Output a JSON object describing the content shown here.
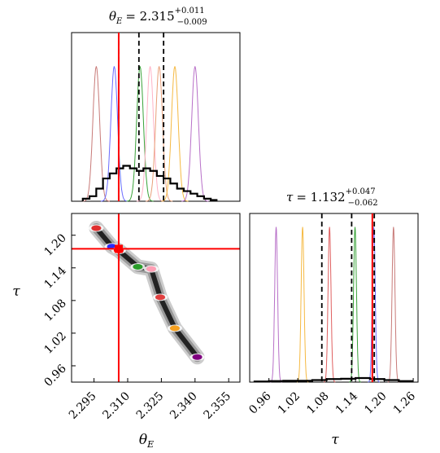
{
  "chart_data": [
    {
      "type": "histogram",
      "panel": "theta_E marginal",
      "title": {
        "param": "θ",
        "param_sub": "E",
        "value": "= 2.315",
        "err_plus": "+0.011",
        "err_minus": "−0.009"
      },
      "xlim": [
        2.285,
        2.36
      ],
      "true_value": 2.306,
      "quantiles": [
        2.306,
        2.315,
        2.326
      ],
      "combined_hist": {
        "color": "#000000",
        "bins": [
          2.29,
          2.293,
          2.296,
          2.299,
          2.302,
          2.305,
          2.308,
          2.311,
          2.314,
          2.317,
          2.32,
          2.323,
          2.326,
          2.329,
          2.332,
          2.335,
          2.338,
          2.341,
          2.344,
          2.347,
          2.35
        ],
        "values": [
          0.01,
          0.02,
          0.05,
          0.09,
          0.11,
          0.13,
          0.14,
          0.13,
          0.12,
          0.13,
          0.12,
          0.1,
          0.09,
          0.07,
          0.05,
          0.04,
          0.03,
          0.02,
          0.01,
          0.005
        ]
      },
      "component_hists": [
        {
          "color": "#c87a78",
          "center": 2.296,
          "width": 0.0015
        },
        {
          "color": "#6a6aff",
          "center": 2.304,
          "width": 0.0015
        },
        {
          "color": "#3aa33a",
          "center": 2.3155,
          "width": 0.0015
        },
        {
          "color": "#ffb3c6",
          "center": 2.32,
          "width": 0.0015
        },
        {
          "color": "#e8a07a",
          "center": 2.324,
          "width": 0.0015
        },
        {
          "color": "#f5b942",
          "center": 2.331,
          "width": 0.0015
        },
        {
          "color": "#b870c8",
          "center": 2.34,
          "width": 0.0015
        }
      ]
    },
    {
      "type": "histogram",
      "panel": "tau marginal",
      "title": {
        "param": "τ",
        "param_sub": "",
        "value": "= 1.132",
        "err_plus": "+0.047",
        "err_minus": "−0.062"
      },
      "xlim": [
        0.92,
        1.27
      ],
      "xticks": [
        "0.96",
        "1.02",
        "1.08",
        "1.14",
        "1.20",
        "1.26"
      ],
      "xticks_values": [
        0.96,
        1.02,
        1.08,
        1.14,
        1.2,
        1.26
      ],
      "xlabel": "τ",
      "true_value": 1.175,
      "quantiles": [
        1.07,
        1.132,
        1.179
      ],
      "combined_hist": {
        "color": "#000000",
        "bins": [
          0.93,
          0.96,
          0.99,
          1.02,
          1.05,
          1.08,
          1.11,
          1.14,
          1.17,
          1.2,
          1.23,
          1.26
        ],
        "values": [
          0.01,
          0.015,
          0.02,
          0.02,
          0.03,
          0.045,
          0.05,
          0.06,
          0.045,
          0.03,
          0.015
        ]
      },
      "component_hists": [
        {
          "color": "#b870c8",
          "center": 0.975,
          "width": 0.003
        },
        {
          "color": "#f5b942",
          "center": 1.03,
          "width": 0.003
        },
        {
          "color": "#e06060",
          "center": 1.086,
          "width": 0.003
        },
        {
          "color": "#3aa33a",
          "center": 1.139,
          "width": 0.003
        },
        {
          "color": "#6a6aff",
          "center": 1.178,
          "width": 0.003
        },
        {
          "color": "#c87a78",
          "center": 1.219,
          "width": 0.003
        }
      ]
    },
    {
      "type": "scatter",
      "panel": "joint theta_E vs tau",
      "xlim": [
        2.285,
        2.36
      ],
      "ylim": [
        0.93,
        1.24
      ],
      "xticks": [
        "2.295",
        "2.310",
        "2.325",
        "2.340",
        "2.355"
      ],
      "xticks_values": [
        2.295,
        2.31,
        2.325,
        2.34,
        2.355
      ],
      "yticks": [
        "0.96",
        "1.02",
        "1.08",
        "1.14",
        "1.20"
      ],
      "yticks_values": [
        0.96,
        1.02,
        1.08,
        1.14,
        1.2
      ],
      "xlabel": "θ",
      "xlabel_sub": "E",
      "ylabel": "τ",
      "truth": {
        "x": 2.306,
        "y": 1.175,
        "color": "#ff0000"
      },
      "clusters": [
        {
          "color": "#e03030",
          "x": 2.296,
          "y": 1.213
        },
        {
          "color": "#2a2aff",
          "x": 2.303,
          "y": 1.179
        },
        {
          "color": "#ff0000",
          "x": 2.306,
          "y": 1.172
        },
        {
          "color": "#2a9d2a",
          "x": 2.3145,
          "y": 1.142
        },
        {
          "color": "#ff9fb5",
          "x": 2.3205,
          "y": 1.138
        },
        {
          "color": "#e04040",
          "x": 2.3245,
          "y": 1.086
        },
        {
          "color": "#f5a020",
          "x": 2.331,
          "y": 1.029
        },
        {
          "color": "#800080",
          "x": 2.341,
          "y": 0.976
        }
      ]
    }
  ]
}
